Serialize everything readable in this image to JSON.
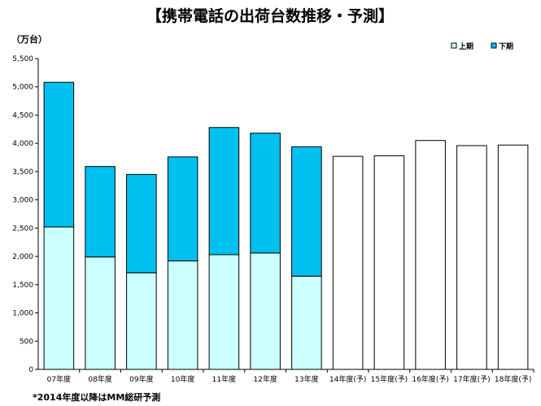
{
  "chart_data": {
    "type": "bar",
    "stacked": true,
    "title": "【携帯電話の出荷台数推移・予測】",
    "unit_label": "（万台）",
    "categories": [
      "07年度",
      "08年度",
      "09年度",
      "10年度",
      "11年度",
      "12年度",
      "13年度",
      "14年度(予)",
      "15年度(予)",
      "16年度(予)",
      "17年度(予)",
      "18年度(予)"
    ],
    "series": [
      {
        "name": "上期",
        "color": "#ccffff",
        "values": [
          2520,
          1990,
          1710,
          1920,
          2030,
          2060,
          1650,
          null,
          null,
          null,
          null,
          null
        ]
      },
      {
        "name": "下期",
        "color": "#00c0f0",
        "values": [
          2560,
          1600,
          1740,
          1840,
          2250,
          2120,
          2290,
          null,
          null,
          null,
          null,
          null
        ]
      }
    ],
    "forecast_totals": [
      null,
      null,
      null,
      null,
      null,
      null,
      null,
      3770,
      3780,
      4050,
      3960,
      3970
    ],
    "forecast_color": "#ffffff",
    "ylim": [
      0,
      5500
    ],
    "y_ticks": [
      "0",
      "500",
      "1,000",
      "1,500",
      "2,000",
      "2,500",
      "3,000",
      "3,500",
      "4,000",
      "4,500",
      "5,000",
      "5,500"
    ],
    "grid": false,
    "legend_position": "top-right",
    "footnote": "*2014年度以降はMM総研予測"
  }
}
